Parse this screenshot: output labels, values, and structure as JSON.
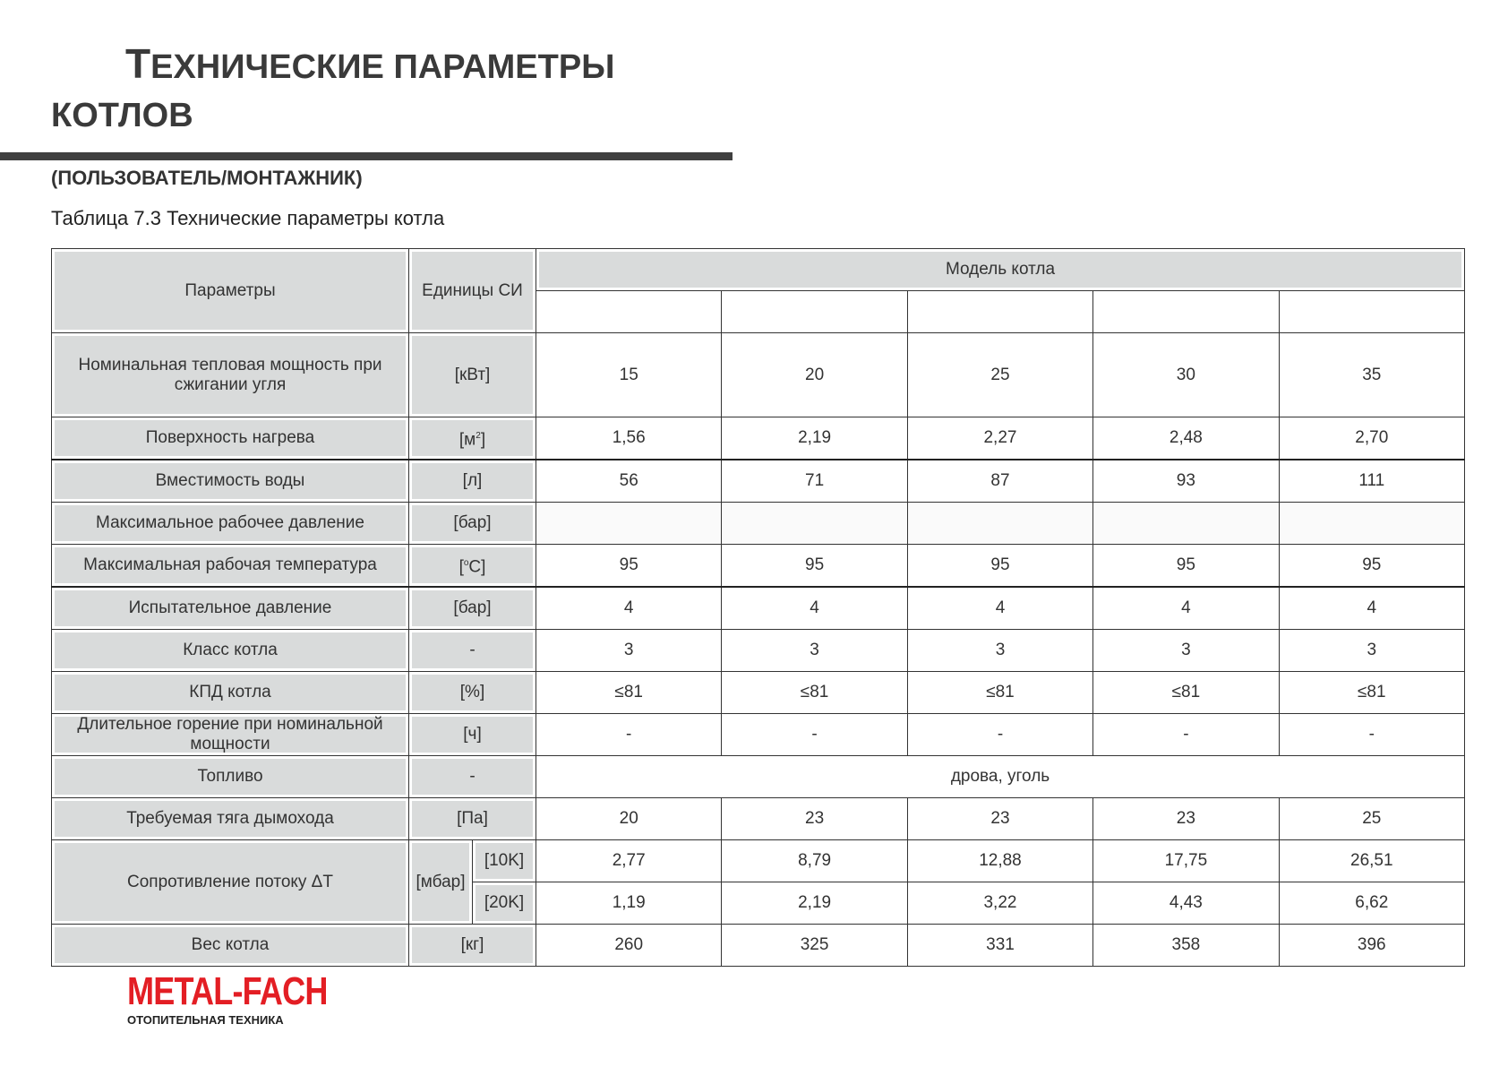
{
  "header": {
    "title_line1": "Технические параметры",
    "title_line2": "котлов",
    "subtitle": "(ПОЛЬЗОВАТЕЛЬ/МОНТАЖНИК)",
    "table_caption": "Таблица 7.3 Технические параметры котла"
  },
  "table": {
    "col_params": "Параметры",
    "col_units": "Единицы СИ",
    "col_models": "Модель котла",
    "rows": [
      {
        "param": "Номинальная тепловая мощность при сжигании угля",
        "unit": "[кВт]",
        "values": [
          "15",
          "20",
          "25",
          "30",
          "35"
        ]
      },
      {
        "param": "Поверхность нагрева",
        "unit": "[м",
        "unit_sup": "2",
        "unit_end": "]",
        "values": [
          "1,56",
          "2,19",
          "2,27",
          "2,48",
          "2,70"
        ]
      },
      {
        "param": "Вместимость воды",
        "unit": "[л]",
        "values": [
          "56",
          "71",
          "87",
          "93",
          "111"
        ]
      },
      {
        "param": "Максимальное рабочее давление",
        "unit": "[бар]",
        "values": [
          "",
          "",
          "",
          "",
          ""
        ]
      },
      {
        "param": "Максимальная рабочая температура",
        "unit": "[",
        "unit_sup": "o",
        "unit_end": "C]",
        "values": [
          "95",
          "95",
          "95",
          "95",
          "95"
        ]
      },
      {
        "param": "Испытательное давление",
        "unit": "[бар]",
        "values": [
          "4",
          "4",
          "4",
          "4",
          "4"
        ]
      },
      {
        "param": "Класс котла",
        "unit": "-",
        "values": [
          "3",
          "3",
          "3",
          "3",
          "3"
        ]
      },
      {
        "param": "КПД котла",
        "unit": "[%]",
        "values": [
          "≤81",
          "≤81",
          "≤81",
          "≤81",
          "≤81"
        ]
      },
      {
        "param": "Длительное горение при номинальной мощности",
        "unit": "[ч]",
        "values": [
          "-",
          "-",
          "-",
          "-",
          "-"
        ]
      },
      {
        "param": "Топливо",
        "unit": "-",
        "merged_value": "дрова, уголь"
      },
      {
        "param": "Требуемая тяга дымохода",
        "unit": "[Па]",
        "values": [
          "20",
          "23",
          "23",
          "23",
          "25"
        ]
      },
      {
        "param": "Сопротивление потоку ΔT",
        "unit": "[мбар]",
        "sub": [
          {
            "label": "[10K]",
            "values": [
              "2,77",
              "8,79",
              "12,88",
              "17,75",
              "26,51"
            ]
          },
          {
            "label": "[20K]",
            "values": [
              "1,19",
              "2,19",
              "3,22",
              "4,43",
              "6,62"
            ]
          }
        ]
      },
      {
        "param": "Вес котла",
        "unit": "[кг]",
        "values": [
          "260",
          "325",
          "331",
          "358",
          "396"
        ]
      }
    ]
  },
  "logo": {
    "brand": "METAL-FACH",
    "tagline": "ОТОПИТЕЛЬНАЯ ТЕХНИКА",
    "color": "#e31e24"
  }
}
